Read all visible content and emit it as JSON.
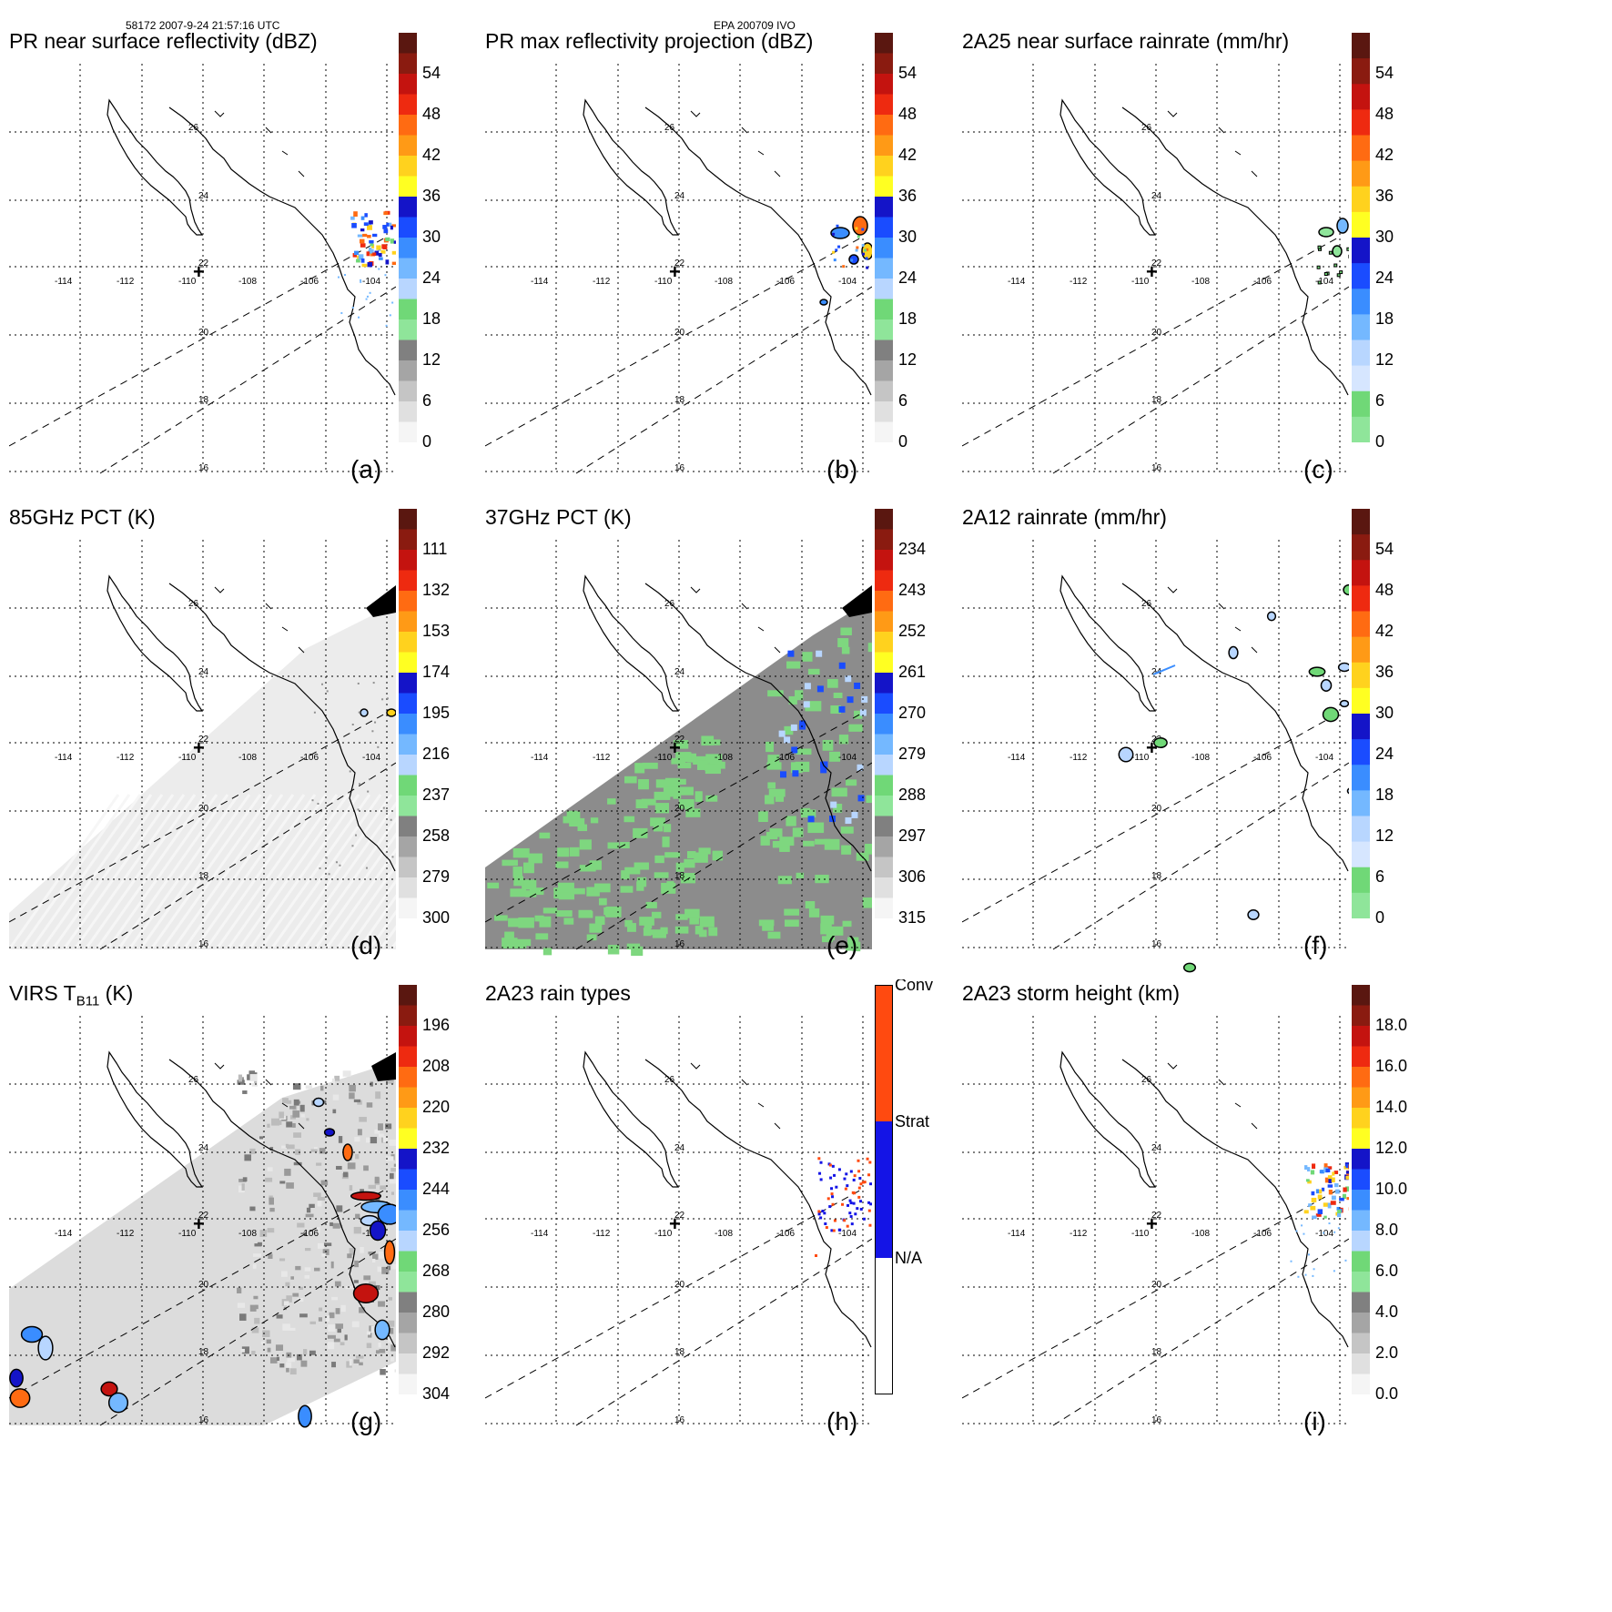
{
  "header": {
    "left": "58172 2007-9-24 21:57:16 UTC",
    "center": "EPA 200709 IVO"
  },
  "map": {
    "lon_ticks": [
      "-114",
      "-112",
      "-110",
      "-108",
      "-106",
      "-104"
    ],
    "lat_ticks": [
      "26",
      "24",
      "22",
      "20",
      "18",
      "16"
    ],
    "center_marker": "+"
  },
  "chart_data": [
    {
      "type": "heatmap",
      "title": "PR near surface reflectivity (dBZ)",
      "letter": "(a)",
      "field": "reflectivity",
      "colorbar_ticks": [
        "54",
        "48",
        "42",
        "36",
        "30",
        "24",
        "18",
        "12",
        "6",
        "0"
      ],
      "colorbar_colors": [
        "#5a1710",
        "#8a1b10",
        "#c4130f",
        "#ee2a10",
        "#ff6b12",
        "#ff9a16",
        "#ffd21e",
        "#ffff22",
        "#1414c8",
        "#1a4cff",
        "#3a8dff",
        "#74b8ff",
        "#b8d6ff",
        "#70d877",
        "#8fe59a",
        "#808080",
        "#a5a5a5",
        "#c5c5c5",
        "#e0e0e0",
        "#f5f5f5"
      ]
    },
    {
      "type": "heatmap",
      "title": "PR max reflectivity projection (dBZ)",
      "letter": "(b)",
      "field": "reflectivity",
      "colorbar_ticks": [
        "54",
        "48",
        "42",
        "36",
        "30",
        "24",
        "18",
        "12",
        "6",
        "0"
      ],
      "colorbar_colors": [
        "#5a1710",
        "#8a1b10",
        "#c4130f",
        "#ee2a10",
        "#ff6b12",
        "#ff9a16",
        "#ffd21e",
        "#ffff22",
        "#1414c8",
        "#1a4cff",
        "#3a8dff",
        "#74b8ff",
        "#b8d6ff",
        "#70d877",
        "#8fe59a",
        "#808080",
        "#a5a5a5",
        "#c5c5c5",
        "#e0e0e0",
        "#f5f5f5"
      ]
    },
    {
      "type": "heatmap",
      "title": "2A25 near surface rainrate (mm/hr)",
      "letter": "(c)",
      "field": "rainrate",
      "colorbar_ticks": [
        "54",
        "48",
        "42",
        "36",
        "30",
        "24",
        "18",
        "12",
        "6",
        "0"
      ],
      "colorbar_colors": [
        "#5a1710",
        "#8a1b10",
        "#c4130f",
        "#ee2a10",
        "#ff6b12",
        "#ff9a16",
        "#ffd21e",
        "#ffff22",
        "#1414c8",
        "#1a4cff",
        "#3a8dff",
        "#74b8ff",
        "#b8d6ff",
        "#d6e6ff",
        "#70d877",
        "#8fe59a"
      ]
    },
    {
      "type": "heatmap",
      "title": "85GHz PCT (K)",
      "letter": "(d)",
      "field": "pct85",
      "colorbar_ticks": [
        "111",
        "132",
        "153",
        "174",
        "195",
        "216",
        "237",
        "258",
        "279",
        "300"
      ],
      "colorbar_colors": [
        "#5a1710",
        "#8a1b10",
        "#c4130f",
        "#ee2a10",
        "#ff6b12",
        "#ff9a16",
        "#ffd21e",
        "#ffff22",
        "#1414c8",
        "#1a4cff",
        "#3a8dff",
        "#74b8ff",
        "#b8d6ff",
        "#70d877",
        "#8fe59a",
        "#808080",
        "#a5a5a5",
        "#c5c5c5",
        "#e0e0e0",
        "#f5f5f5"
      ]
    },
    {
      "type": "heatmap",
      "title": "37GHz PCT (K)",
      "letter": "(e)",
      "field": "pct37",
      "colorbar_ticks": [
        "234",
        "243",
        "252",
        "261",
        "270",
        "279",
        "288",
        "297",
        "306",
        "315"
      ],
      "colorbar_colors": [
        "#5a1710",
        "#8a1b10",
        "#c4130f",
        "#ee2a10",
        "#ff6b12",
        "#ff9a16",
        "#ffd21e",
        "#ffff22",
        "#1414c8",
        "#1a4cff",
        "#3a8dff",
        "#74b8ff",
        "#b8d6ff",
        "#70d877",
        "#8fe59a",
        "#808080",
        "#a5a5a5",
        "#c5c5c5",
        "#e0e0e0",
        "#f5f5f5"
      ]
    },
    {
      "type": "heatmap",
      "title": "2A12 rainrate (mm/hr)",
      "letter": "(f)",
      "field": "rainrate12",
      "colorbar_ticks": [
        "54",
        "48",
        "42",
        "36",
        "30",
        "24",
        "18",
        "12",
        "6",
        "0"
      ],
      "colorbar_colors": [
        "#5a1710",
        "#8a1b10",
        "#c4130f",
        "#ee2a10",
        "#ff6b12",
        "#ff9a16",
        "#ffd21e",
        "#ffff22",
        "#1414c8",
        "#1a4cff",
        "#3a8dff",
        "#74b8ff",
        "#b8d6ff",
        "#d6e6ff",
        "#70d877",
        "#8fe59a"
      ]
    },
    {
      "type": "heatmap",
      "title_main": "VIRS T",
      "title_sub": "B11",
      "title_units": " (K)",
      "letter": "(g)",
      "field": "virs",
      "colorbar_ticks": [
        "196",
        "208",
        "220",
        "232",
        "244",
        "256",
        "268",
        "280",
        "292",
        "304"
      ],
      "colorbar_colors": [
        "#5a1710",
        "#8a1b10",
        "#c4130f",
        "#ee2a10",
        "#ff6b12",
        "#ff9a16",
        "#ffd21e",
        "#ffff22",
        "#1414c8",
        "#1a4cff",
        "#3a8dff",
        "#74b8ff",
        "#b8d6ff",
        "#70d877",
        "#8fe59a",
        "#808080",
        "#a5a5a5",
        "#c5c5c5",
        "#e0e0e0",
        "#f5f5f5"
      ]
    },
    {
      "type": "heatmap",
      "title": "2A23 rain types",
      "letter": "(h)",
      "field": "raintype",
      "colorbar_ticks": [
        "Conv",
        "Strat",
        "N/A"
      ],
      "colorbar_colors": [
        "#ff4a10",
        "#1414e6",
        "#ffffff"
      ]
    },
    {
      "type": "heatmap",
      "title": "2A23 storm height (km)",
      "letter": "(i)",
      "field": "stormheight",
      "colorbar_ticks": [
        "18.0",
        "16.0",
        "14.0",
        "12.0",
        "10.0",
        "8.0",
        "6.0",
        "4.0",
        "2.0",
        "0.0"
      ],
      "colorbar_colors": [
        "#5a1710",
        "#8a1b10",
        "#c4130f",
        "#ee2a10",
        "#ff6b12",
        "#ff9a16",
        "#ffd21e",
        "#ffff22",
        "#1414c8",
        "#1a4cff",
        "#3a8dff",
        "#74b8ff",
        "#b8d6ff",
        "#70d877",
        "#8fe59a",
        "#808080",
        "#a5a5a5",
        "#c5c5c5",
        "#e0e0e0",
        "#f5f5f5"
      ]
    }
  ]
}
